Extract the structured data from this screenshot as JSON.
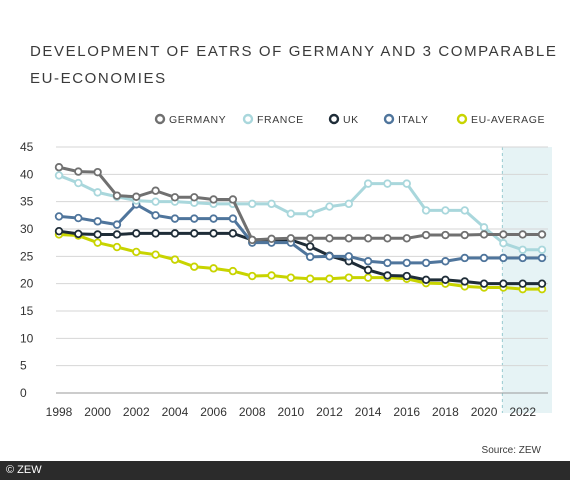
{
  "title_line1": "DEVELOPMENT OF EATRS OF GERMANY AND 3 COMPARABLE",
  "title_line2": "EU-ECONOMIES",
  "source": "Source: ZEW",
  "copyright": "© ZEW",
  "chart_data": {
    "type": "line",
    "x": [
      1998,
      1999,
      2000,
      2001,
      2002,
      2003,
      2004,
      2005,
      2006,
      2007,
      2008,
      2009,
      2010,
      2011,
      2012,
      2013,
      2014,
      2015,
      2016,
      2017,
      2018,
      2019,
      2020,
      2021,
      2022,
      2023
    ],
    "xticks": [
      1998,
      2000,
      2002,
      2004,
      2006,
      2008,
      2010,
      2012,
      2014,
      2016,
      2018,
      2020,
      2022
    ],
    "yticks": [
      0,
      5,
      10,
      15,
      20,
      25,
      30,
      35,
      40,
      45
    ],
    "ylim": [
      0,
      45
    ],
    "xlim": [
      1998,
      2023
    ],
    "grid": "horizontal",
    "legend_position": "top-right",
    "shaded_region": [
      2021,
      2023
    ],
    "series": [
      {
        "name": "GERMANY",
        "color": "#707070",
        "values": [
          41.3,
          40.5,
          40.4,
          36.1,
          35.9,
          37.0,
          35.8,
          35.8,
          35.4,
          35.4,
          28.0,
          28.2,
          28.3,
          28.3,
          28.3,
          28.3,
          28.3,
          28.3,
          28.3,
          28.9,
          28.9,
          28.9,
          29.0,
          29.0,
          29.0,
          29.0
        ]
      },
      {
        "name": "FRANCE",
        "color": "#a9d7dc",
        "values": [
          39.8,
          38.4,
          36.7,
          35.9,
          35.2,
          35.0,
          35.0,
          34.8,
          34.6,
          34.6,
          34.6,
          34.6,
          32.8,
          32.8,
          34.1,
          34.6,
          38.3,
          38.3,
          38.3,
          33.4,
          33.4,
          33.4,
          30.3,
          27.4,
          26.2,
          26.2
        ]
      },
      {
        "name": "UK",
        "color": "#1f2d38",
        "values": [
          29.6,
          29.1,
          29.0,
          29.0,
          29.2,
          29.2,
          29.2,
          29.2,
          29.2,
          29.2,
          28.0,
          28.0,
          28.0,
          26.8,
          25.1,
          24.1,
          22.5,
          21.5,
          21.4,
          20.7,
          20.7,
          20.4,
          20.0,
          20.0,
          20.0,
          20.0
        ]
      },
      {
        "name": "ITALY",
        "color": "#4f759c",
        "values": [
          32.3,
          32.0,
          31.4,
          30.8,
          34.5,
          32.5,
          31.9,
          31.9,
          31.9,
          31.9,
          27.5,
          27.5,
          27.5,
          24.9,
          25.0,
          25.0,
          24.1,
          23.8,
          23.8,
          23.8,
          24.1,
          24.7,
          24.7,
          24.7,
          24.7,
          24.7
        ]
      },
      {
        "name": "EU-AVERAGE",
        "color": "#c8d400",
        "values": [
          29.0,
          28.8,
          27.5,
          26.7,
          25.8,
          25.3,
          24.4,
          23.1,
          22.8,
          22.3,
          21.4,
          21.5,
          21.1,
          20.9,
          20.9,
          21.1,
          21.1,
          21.1,
          20.9,
          20.1,
          20.0,
          19.5,
          19.3,
          19.3,
          19.0,
          19.0
        ]
      }
    ]
  }
}
